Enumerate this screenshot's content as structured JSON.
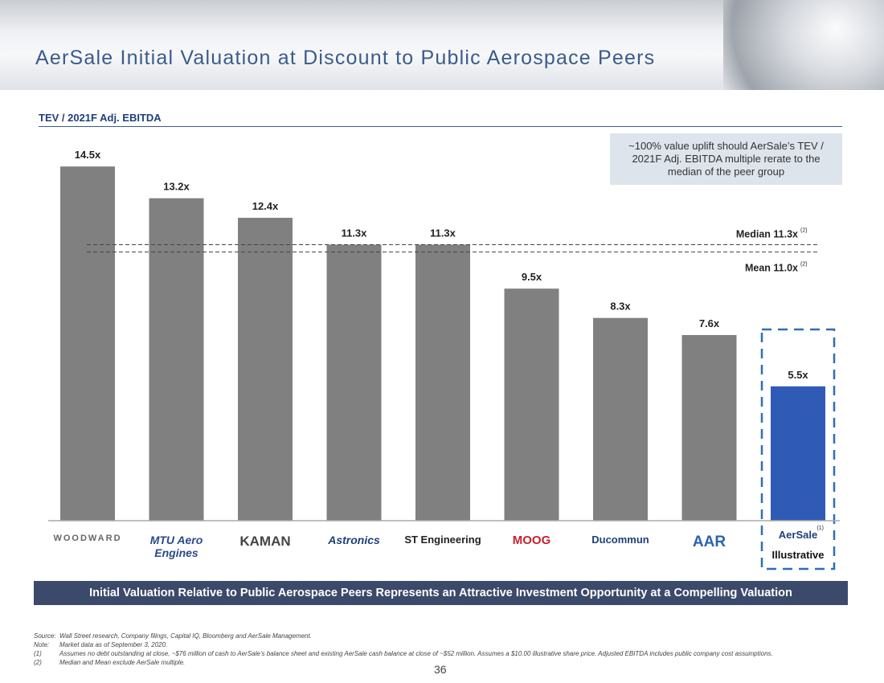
{
  "title": "AerSale Initial Valuation at Discount to Public Aerospace Peers",
  "subtitle": "TEV / 2021F Adj. EBITDA",
  "callout": "~100% value uplift should AerSale’s TEV / 2021F Adj. EBITDA multiple rerate to the median of the peer group",
  "chart_data": {
    "type": "bar",
    "categories": [
      "WOODWARD",
      "MTU Aero Engines",
      "KAMAN",
      "Astronics",
      "ST Engineering",
      "MOOG",
      "Ducommun",
      "AAR",
      "AerSale"
    ],
    "values": [
      14.5,
      13.2,
      12.4,
      11.3,
      11.3,
      9.5,
      8.3,
      7.6,
      5.5
    ],
    "labels": [
      "14.5x",
      "13.2x",
      "12.4x",
      "11.3x",
      "11.3x",
      "9.5x",
      "8.3x",
      "7.6x",
      "5.5x"
    ],
    "colors": {
      "peer": "#808080",
      "aersale": "#2f5bb7"
    },
    "reference_lines": [
      {
        "label": "Median 11.3x",
        "value": 11.3,
        "note": "(2)"
      },
      {
        "label": "Mean 11.0x",
        "value": 11.0,
        "note": "(2)"
      }
    ],
    "highlight_note": "(1)",
    "highlight_label": "Illustrative"
  },
  "banner": "Initial Valuation Relative to Public Aerospace Peers Represents an Attractive Investment Opportunity at a Compelling Valuation",
  "notes": [
    {
      "k": "Source:",
      "t": "Wall Street research, Company filings, Capital IQ, Bloomberg and AerSale Management."
    },
    {
      "k": "Note:",
      "t": "Market data as of September 3, 2020."
    },
    {
      "k": "(1)",
      "t": "Assumes no debt outstanding at close, ~$76 million of cash to AerSale’s balance sheet and existing AerSale cash balance at close of ~$52 million. Assumes a $10.00 illustrative share price. Adjusted EBITDA includes public company cost assumptions."
    },
    {
      "k": "(2)",
      "t": "Median and Mean exclude AerSale multiple."
    }
  ],
  "page_number": "36"
}
